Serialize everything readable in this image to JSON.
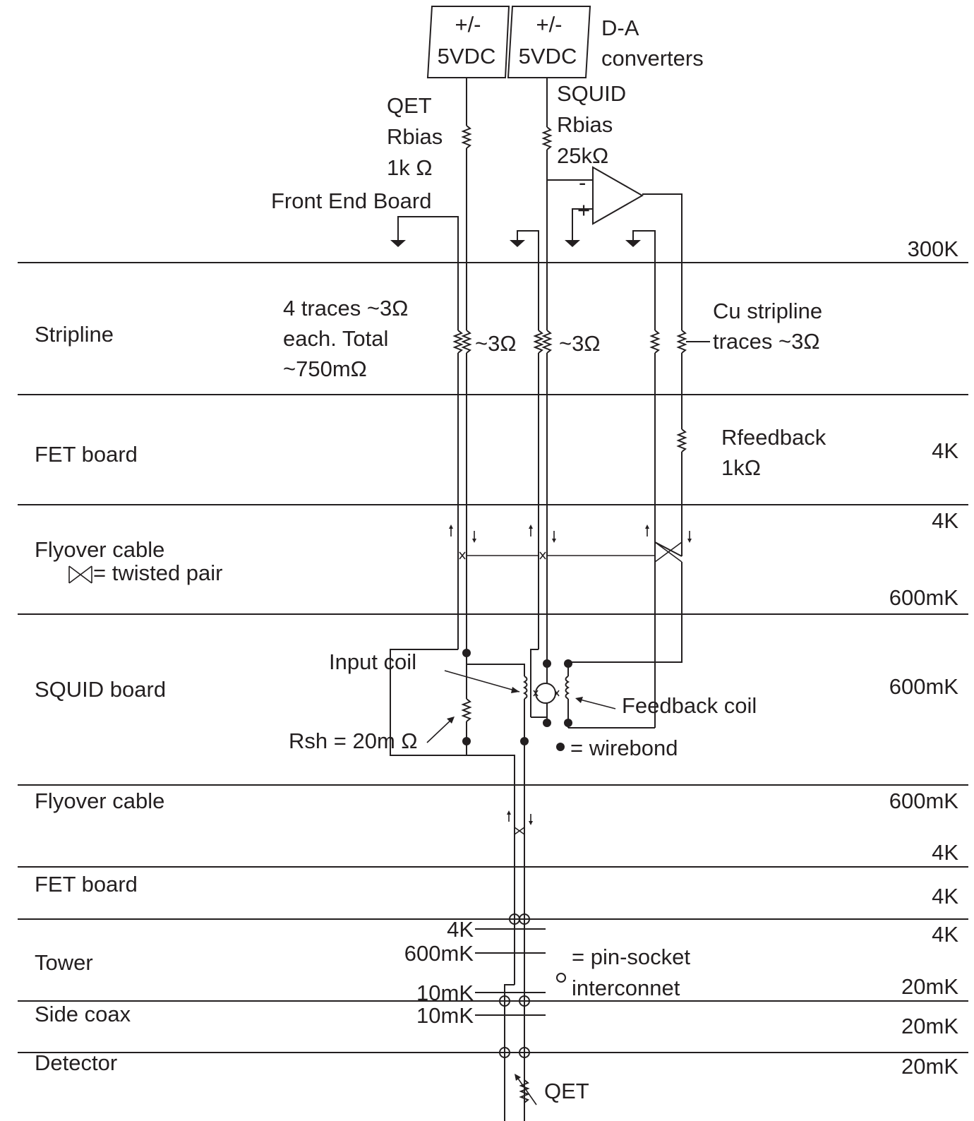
{
  "header": {
    "supply_plus_minus": "+/-",
    "supply_voltage": "5VDC",
    "da_line1": "D-A",
    "da_line2": "converters"
  },
  "front_end": {
    "qet_label": "QET",
    "qet_rbias": "Rbias",
    "qet_value": "1k Ω",
    "squid_label": "SQUID",
    "squid_rbias": "Rbias",
    "squid_value": "25kΩ",
    "board_label": "Front End Board",
    "amp_minus": "-",
    "amp_plus": "+"
  },
  "layers": {
    "stripline": "Stripline",
    "fet_board": "FET board",
    "flyover_cable": "Flyover cable",
    "twisted_pair_note": "= twisted pair",
    "squid_board": "SQUID board",
    "tower": "Tower",
    "side_coax": "Side coax",
    "detector": "Detector"
  },
  "temperatures": {
    "t300k": "300K",
    "t4k": "4K",
    "t600mk": "600mK",
    "t20mk": "20mK",
    "t10mk": "10mK"
  },
  "annotations": {
    "traces_line1": "4 traces ~3Ω",
    "traces_line2": "each. Total",
    "traces_line3": "~750mΩ",
    "trace_res": "~3Ω",
    "cu_line1": "Cu stripline",
    "cu_line2": "traces ~3Ω",
    "rfeedback": "Rfeedback",
    "rfeedback_value": "1kΩ",
    "input_coil": "Input coil",
    "feedback_coil": "Feedback coil",
    "rsh": "Rsh = 20m Ω",
    "wirebond": "= wirebond",
    "pin_socket_line1": "= pin-socket",
    "pin_socket_line2": "interconnet",
    "qet": "QET"
  }
}
